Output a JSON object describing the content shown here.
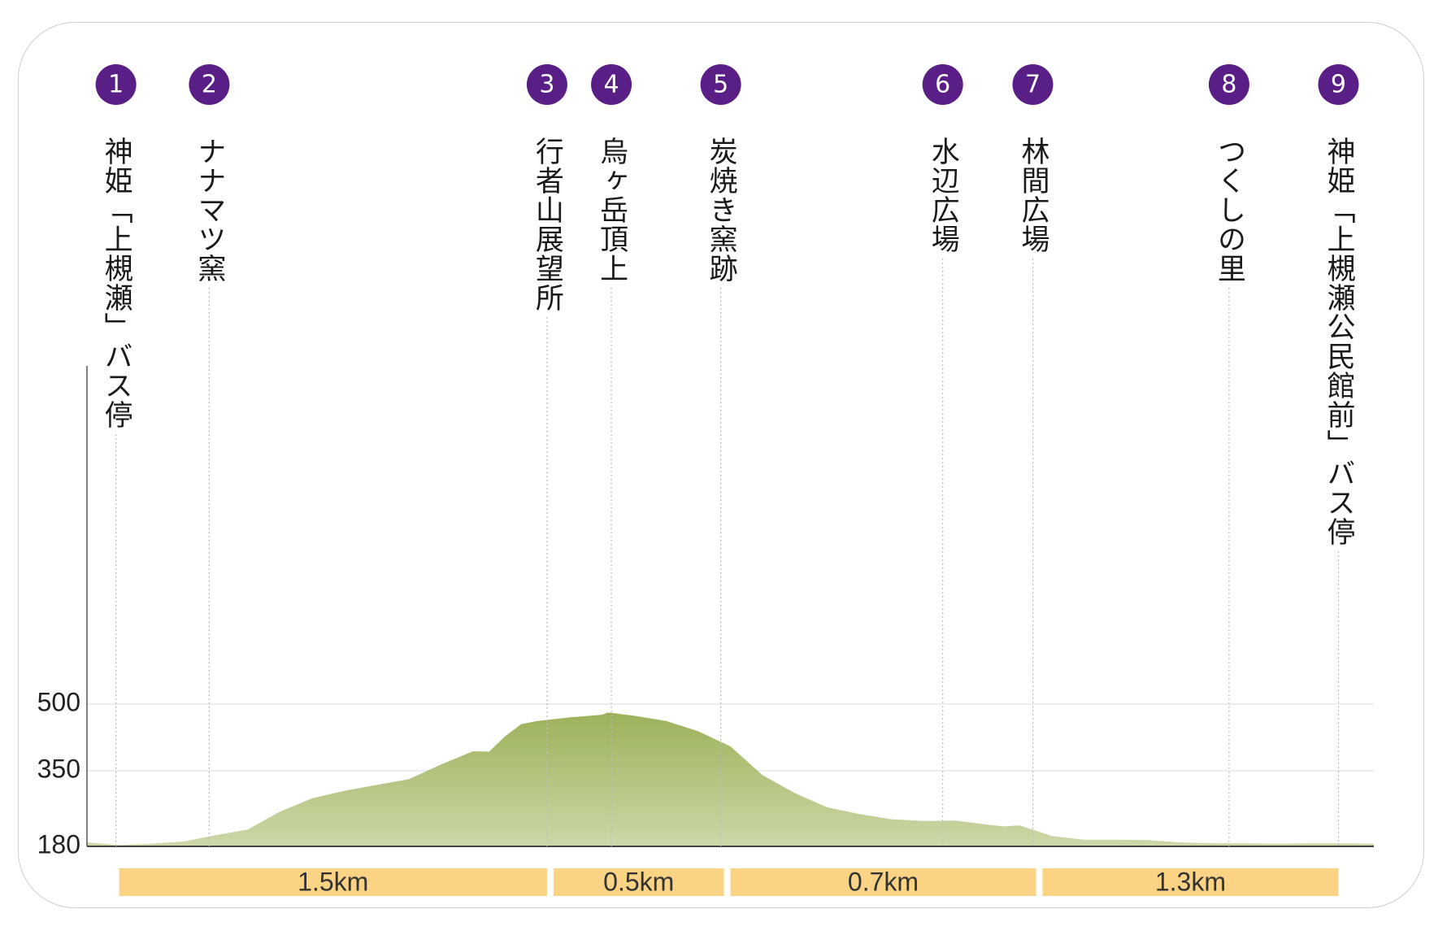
{
  "chart_data": {
    "type": "area",
    "title": "",
    "xlabel": "",
    "ylabel": "",
    "ylim": [
      180,
      500
    ],
    "y_ticks": [
      180,
      350,
      500
    ],
    "y_tick_labels": [
      "180",
      "350",
      "500"
    ],
    "grid": true,
    "x_range": [
      0,
      4.0
    ],
    "fill_color_top": "#9bb25a",
    "fill_color_bottom": "#ccd8a8",
    "marker_color": "#5a1e87",
    "segment_color": "#fbd385",
    "checkpoints": [
      {
        "num": "1",
        "name": "神姫「上槻瀬」バス停",
        "x": 0.09
      },
      {
        "num": "2",
        "name": "ナナマツ窯",
        "x": 0.38
      },
      {
        "num": "3",
        "name": "行者山展望所",
        "x": 1.43
      },
      {
        "num": "4",
        "name": "烏ヶ岳頂上",
        "x": 1.63
      },
      {
        "num": "5",
        "name": "炭焼き窯跡",
        "x": 1.97
      },
      {
        "num": "6",
        "name": "水辺広場",
        "x": 2.66
      },
      {
        "num": "7",
        "name": "林間広場",
        "x": 2.94
      },
      {
        "num": "8",
        "name": "つくしの里",
        "x": 3.55
      },
      {
        "num": "9",
        "name": "神姫「上槻瀬公民館前」バス停",
        "x": 3.89
      }
    ],
    "segments": [
      {
        "label": "1.5km",
        "from": 0.1,
        "to": 1.43
      },
      {
        "label": "0.5km",
        "from": 1.45,
        "to": 1.98
      },
      {
        "label": "0.7km",
        "from": 2.0,
        "to": 2.95
      },
      {
        "label": "1.3km",
        "from": 2.97,
        "to": 3.89
      }
    ],
    "elevation_profile": {
      "x": [
        0,
        0.1,
        0.2,
        0.3,
        0.4,
        0.5,
        0.6,
        0.7,
        0.8,
        0.9,
        1.0,
        1.1,
        1.2,
        1.25,
        1.3,
        1.35,
        1.4,
        1.5,
        1.6,
        1.62,
        1.7,
        1.8,
        1.9,
        2.0,
        2.1,
        2.2,
        2.3,
        2.4,
        2.5,
        2.6,
        2.7,
        2.8,
        2.85,
        2.9,
        3.0,
        3.1,
        3.2,
        3.3,
        3.4,
        3.5,
        3.6,
        3.7,
        3.8,
        3.9,
        4.0
      ],
      "y": [
        189,
        183,
        186,
        191,
        205,
        218,
        258,
        288,
        305,
        318,
        331,
        364,
        394,
        393,
        428,
        455,
        462,
        470,
        476,
        481,
        474,
        462,
        439,
        405,
        340,
        300,
        268,
        253,
        241,
        237,
        238,
        229,
        225,
        227,
        203,
        195,
        195,
        194,
        189,
        187,
        187,
        186,
        187,
        187,
        186
      ]
    }
  }
}
